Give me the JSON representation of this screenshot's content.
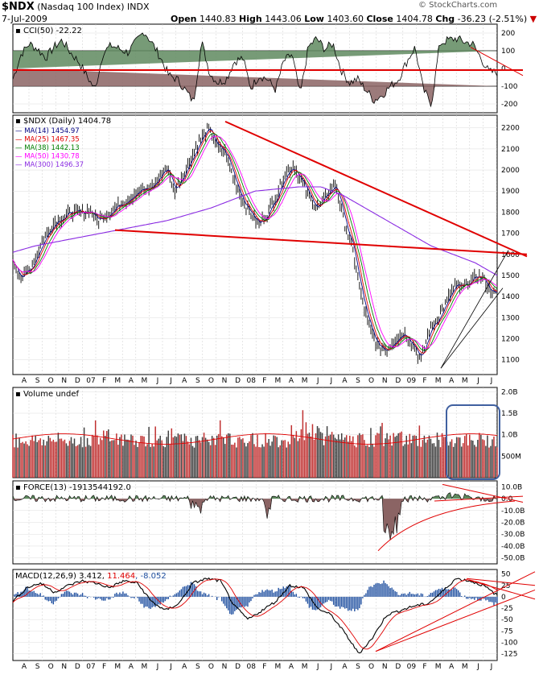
{
  "header": {
    "symbol": "$NDX",
    "name": "(Nasdaq 100 Index)",
    "exchange": "INDX",
    "date": "7-Jul-2009",
    "open_label": "Open",
    "open": "1440.83",
    "high_label": "High",
    "high": "1443.06",
    "low_label": "Low",
    "low": "1403.60",
    "close_label": "Close",
    "close": "1404.78",
    "chg_label": "Chg",
    "chg": "-36.23 (-2.51%)",
    "watermark": "© StockCharts.com"
  },
  "colors": {
    "price": "#000000",
    "trendline": "#e00000",
    "ma14": "#000080",
    "ma25": "#e00000",
    "ma38": "#008000",
    "ma50": "#ff00ff",
    "ma300": "#8a2be2",
    "positive_fill": "#5f8a5f",
    "negative_fill": "#8b6464",
    "volume_red": "#c03030",
    "volume_dark": "#404040",
    "highlight_box": "#4060a0"
  },
  "chart_data": [
    {
      "type": "line",
      "panel": "cci",
      "title": "CCI(50) -22.22",
      "y_ticks": [
        "200",
        "100",
        "0",
        "-100",
        "-200"
      ],
      "ylim": [
        -250,
        250
      ],
      "guide_lines": [
        100,
        -100
      ],
      "series": [
        {
          "name": "CCI(50)",
          "values": [
            -60,
            80,
            140,
            110,
            60,
            120,
            160,
            90,
            40,
            -40,
            -120,
            90,
            130,
            110,
            90,
            150,
            210,
            140,
            60,
            -40,
            -60,
            -120,
            -190,
            150,
            -30,
            -80,
            -60,
            40,
            60,
            -110,
            -40,
            -60,
            -120,
            40,
            80,
            -150,
            120,
            170,
            110,
            140,
            -10,
            -80,
            -60,
            -120,
            -180,
            -150,
            -100,
            -60,
            40,
            120,
            -120,
            -200,
            140,
            160,
            170,
            150,
            140,
            60,
            -20,
            -22
          ]
        }
      ]
    },
    {
      "type": "line",
      "panel": "price",
      "title": "$NDX (Daily) 1404.78",
      "legend": [
        {
          "name": "MA(14)",
          "value": "1454.97"
        },
        {
          "name": "MA(25)",
          "value": "1467.35"
        },
        {
          "name": "MA(38)",
          "value": "1442.13"
        },
        {
          "name": "MA(50)",
          "value": "1430.78"
        },
        {
          "name": "MA(300)",
          "value": "1496.37"
        }
      ],
      "y_ticks": [
        "2200",
        "2100",
        "2000",
        "1900",
        "1800",
        "1700",
        "1600",
        "1500",
        "1400",
        "1300",
        "1200",
        "1100"
      ],
      "ylim": [
        1030,
        2260
      ],
      "x_ticks": [
        "A",
        "S",
        "O",
        "N",
        "D",
        "07",
        "F",
        "M",
        "A",
        "M",
        "J",
        "J",
        "A",
        "S",
        "O",
        "N",
        "D",
        "08",
        "F",
        "M",
        "A",
        "M",
        "J",
        "J",
        "A",
        "S",
        "O",
        "N",
        "D",
        "09",
        "F",
        "M",
        "A",
        "M",
        "J",
        "J"
      ],
      "series": [
        {
          "name": "$NDX",
          "values": [
            1560,
            1490,
            1530,
            1620,
            1700,
            1760,
            1780,
            1800,
            1790,
            1810,
            1760,
            1790,
            1820,
            1850,
            1880,
            1900,
            1910,
            1950,
            2020,
            1900,
            1980,
            2060,
            2140,
            2200,
            2110,
            2080,
            1960,
            1860,
            1790,
            1740,
            1800,
            1880,
            1980,
            2020,
            1940,
            1860,
            1820,
            1890,
            1930,
            1750,
            1620,
            1400,
            1240,
            1160,
            1150,
            1200,
            1230,
            1180,
            1100,
            1240,
            1300,
            1370,
            1450,
            1440,
            1480,
            1500,
            1440,
            1405
          ]
        }
      ],
      "ma300": [
        1610,
        1640,
        1660,
        1680,
        1700,
        1720,
        1740,
        1760,
        1790,
        1820,
        1860,
        1900,
        1910,
        1920,
        1920,
        1880,
        1820,
        1760,
        1700,
        1640,
        1600,
        1560,
        1500
      ],
      "trendlines": "down from Nov-07 peak, flat support near 1700"
    },
    {
      "type": "bar",
      "panel": "volume",
      "title": "Volume undef",
      "y_ticks": [
        "2.0B",
        "1.5B",
        "1.0B",
        "500M"
      ],
      "ylim": [
        0,
        2100000000
      ]
    },
    {
      "type": "area",
      "panel": "force",
      "title": "FORCE(13) -1913544192.0",
      "y_ticks": [
        "10.0B",
        "0.0",
        "-10.0B",
        "-20.0B",
        "-30.0B",
        "-40.0B",
        "-50.0B"
      ],
      "ylim": [
        -55000000000,
        15000000000
      ]
    },
    {
      "type": "line",
      "panel": "macd",
      "title": "MACD(12,26,9)",
      "macd": "3.412",
      "signal": "11.464",
      "histogram": "-8.052",
      "y_ticks": [
        "50",
        "25",
        "0",
        "-25",
        "-50",
        "-75",
        "-100",
        "-125"
      ],
      "ylim": [
        -140,
        60
      ],
      "x_ticks": [
        "A",
        "S",
        "O",
        "N",
        "D",
        "07",
        "F",
        "M",
        "A",
        "M",
        "J",
        "J",
        "A",
        "S",
        "O",
        "N",
        "D",
        "08",
        "F",
        "M",
        "A",
        "M",
        "J",
        "J",
        "A",
        "S",
        "O",
        "N",
        "D",
        "09",
        "F",
        "M",
        "A",
        "M",
        "J",
        "J"
      ]
    }
  ]
}
